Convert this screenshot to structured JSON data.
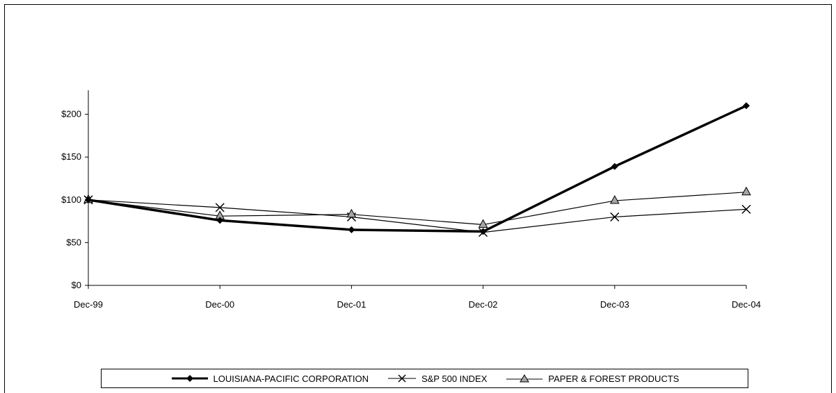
{
  "chart_data": {
    "type": "line",
    "x": [
      "Dec-99",
      "Dec-00",
      "Dec-01",
      "Dec-02",
      "Dec-03",
      "Dec-04"
    ],
    "y_ticks": [
      "$0",
      "$50",
      "$100",
      "$150",
      "$200"
    ],
    "ylim": [
      0,
      250
    ],
    "grid": false,
    "legend_position": "bottom",
    "series": [
      {
        "name": "LOUISIANA-PACIFIC CORPORATION",
        "values": [
          100,
          76,
          65,
          63,
          139,
          210
        ],
        "marker": "diamond",
        "color": "#000000",
        "line_weight": "heavy"
      },
      {
        "name": "S&P 500 INDEX",
        "values": [
          100,
          91,
          80,
          62,
          80,
          89
        ],
        "marker": "x",
        "color": "#000000",
        "line_weight": "thin"
      },
      {
        "name": "PAPER & FOREST PRODUCTS",
        "values": [
          100,
          81,
          83,
          71,
          99,
          109
        ],
        "marker": "triangle",
        "color": "#000000",
        "marker_fill": "#a6a6a6",
        "line_weight": "thin"
      }
    ]
  }
}
